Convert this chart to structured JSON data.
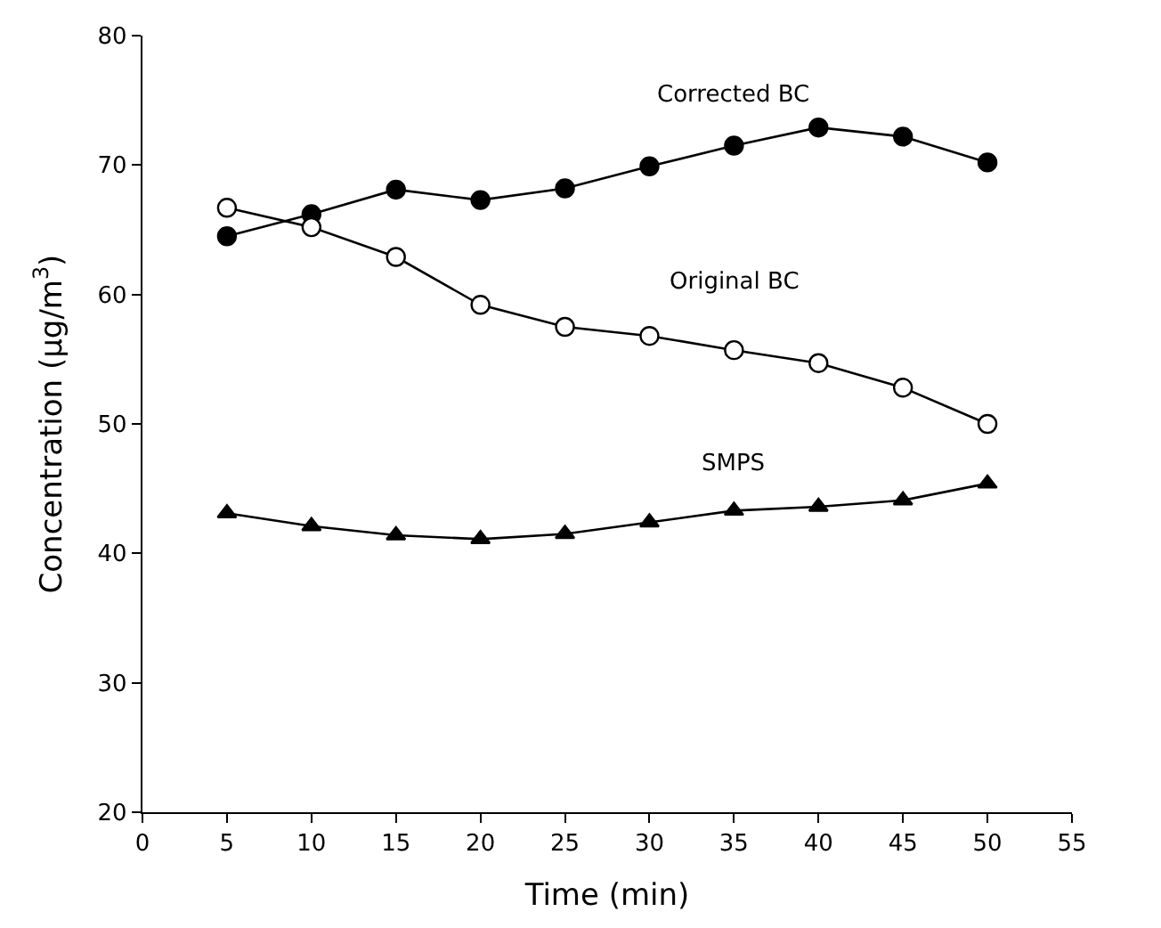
{
  "chart_data": {
    "type": "line",
    "xlabel": "Time (min)",
    "ylabel": "Concentration (μg/m$^{3}$)",
    "x": [
      5,
      10,
      15,
      20,
      25,
      30,
      35,
      40,
      45,
      50
    ],
    "series": [
      {
        "name": "Corrected BC",
        "color": "#000000",
        "marker": "circle",
        "values": [
          64.5,
          66.2,
          68.1,
          67.3,
          68.2,
          69.9,
          71.5,
          72.9,
          72.2,
          70.2
        ]
      },
      {
        "name": "Original BC",
        "color": "#ffffff",
        "marker": "circle",
        "values": [
          66.7,
          65.2,
          62.9,
          59.2,
          57.5,
          56.8,
          55.7,
          54.7,
          52.8,
          50.0
        ]
      },
      {
        "name": "SMPS",
        "color": "#000000",
        "marker": "triangle",
        "values": [
          43.1,
          42.1,
          41.4,
          41.1,
          41.5,
          42.4,
          43.3,
          43.6,
          44.1,
          45.4
        ]
      }
    ],
    "xlim": [
      0,
      55
    ],
    "xticks": [
      0,
      5,
      10,
      15,
      20,
      25,
      30,
      35,
      40,
      45,
      50,
      55
    ],
    "ylim": [
      20,
      80
    ],
    "yticks": [
      20,
      30,
      40,
      50,
      60,
      70,
      80
    ],
    "legend": false,
    "line_style": "solid"
  }
}
